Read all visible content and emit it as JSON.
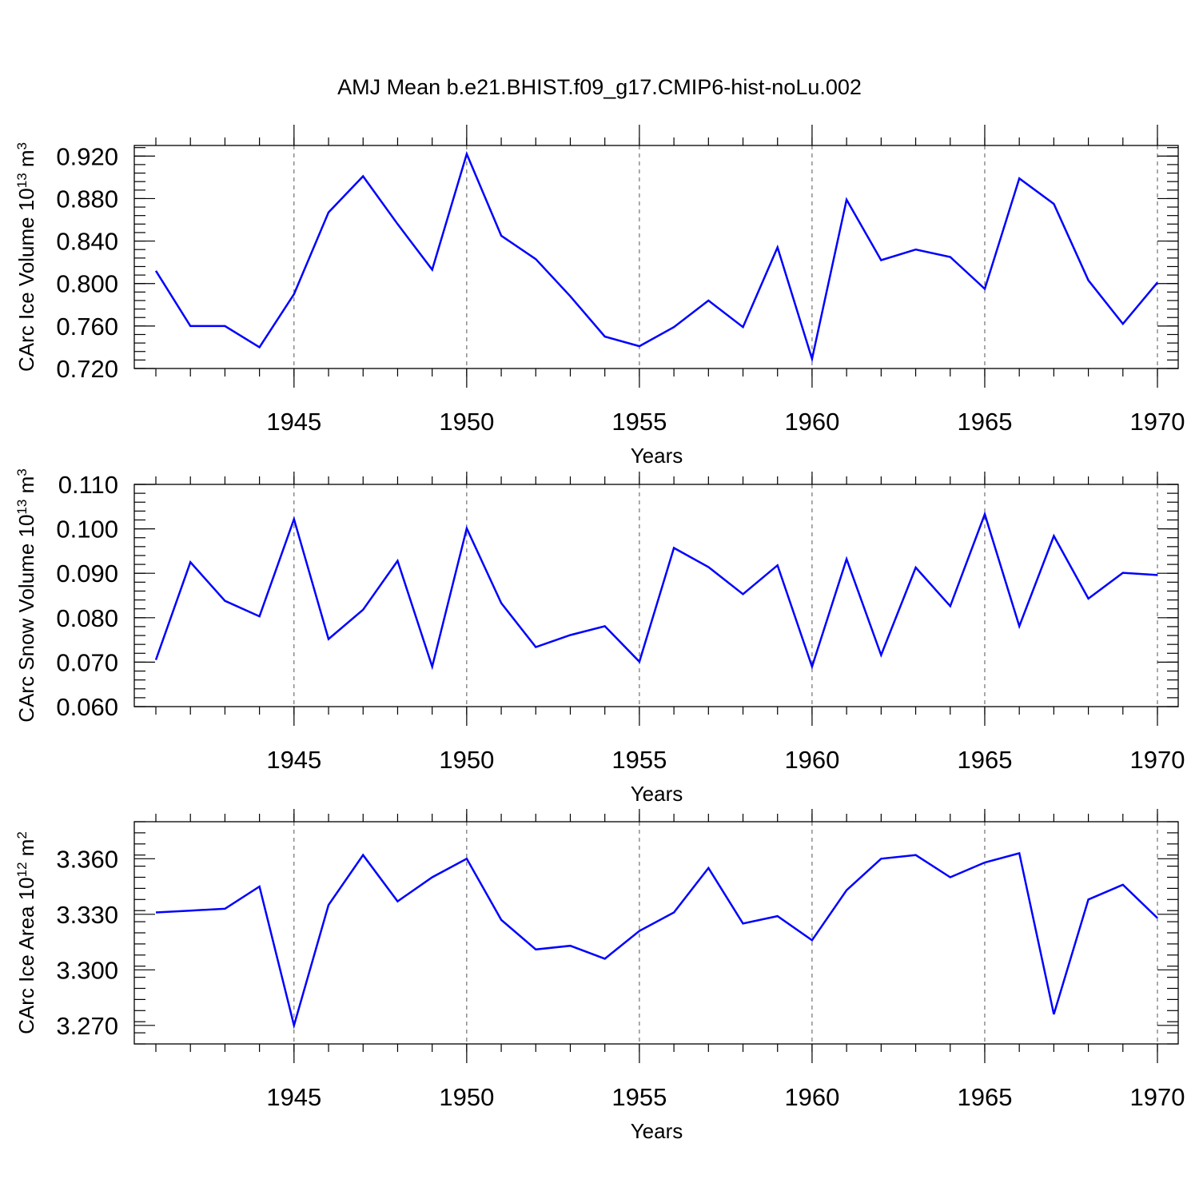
{
  "chart_data": {
    "title": "AMJ Mean b.e21.BHIST.f09_g17.CMIP6-hist-noLu.002",
    "line_color": "#0000ff",
    "x": [
      1941,
      1942,
      1943,
      1944,
      1945,
      1946,
      1947,
      1948,
      1949,
      1950,
      1951,
      1952,
      1953,
      1954,
      1955,
      1956,
      1957,
      1958,
      1959,
      1960,
      1961,
      1962,
      1963,
      1964,
      1965,
      1966,
      1967,
      1968,
      1969,
      1970
    ],
    "xlim": [
      1941,
      1970
    ],
    "xticks": [
      "1945",
      "1950",
      "1955",
      "1960",
      "1965",
      "1970"
    ],
    "xlabel": "Years",
    "panels": [
      {
        "type": "line",
        "name": "CArc Ice Volume",
        "ylabel_main": "CArc Ice Volume 10",
        "ylabel_exp": "13",
        "ylabel_unit": " m",
        "ylabel_unit_exp": "3",
        "ylim": [
          0.72,
          0.93
        ],
        "yticks": [
          "0.720",
          "0.760",
          "0.800",
          "0.840",
          "0.880",
          "0.920"
        ],
        "values": [
          0.812,
          0.76,
          0.76,
          0.74,
          0.79,
          0.867,
          0.901,
          0.856,
          0.813,
          0.922,
          0.845,
          0.823,
          0.788,
          0.75,
          0.741,
          0.759,
          0.784,
          0.759,
          0.834,
          0.729,
          0.879,
          0.822,
          0.832,
          0.825,
          0.795,
          0.899,
          0.875,
          0.803,
          0.762,
          0.801
        ]
      },
      {
        "type": "line",
        "name": "CArc Snow Volume",
        "ylabel_main": "CArc Snow Volume 10",
        "ylabel_exp": "13",
        "ylabel_unit": " m",
        "ylabel_unit_exp": "3",
        "ylim": [
          0.06,
          0.11
        ],
        "yticks": [
          "0.060",
          "0.070",
          "0.080",
          "0.090",
          "0.100",
          "0.110"
        ],
        "values": [
          0.0705,
          0.0925,
          0.0838,
          0.0803,
          0.1022,
          0.0752,
          0.0818,
          0.0928,
          0.069,
          0.1001,
          0.0833,
          0.0734,
          0.0761,
          0.0781,
          0.0701,
          0.0957,
          0.0914,
          0.0853,
          0.0918,
          0.069,
          0.0932,
          0.0716,
          0.0913,
          0.0826,
          0.1033,
          0.0781,
          0.0984,
          0.0843,
          0.0901,
          0.0896
        ]
      },
      {
        "type": "line",
        "name": "CArc Ice Area",
        "ylabel_main": "CArc Ice Area 10",
        "ylabel_exp": "12",
        "ylabel_unit": " m",
        "ylabel_unit_exp": "2",
        "ylim": [
          3.26,
          3.38
        ],
        "yticks": [
          "3.270",
          "3.300",
          "3.330",
          "3.360"
        ],
        "values": [
          3.331,
          3.332,
          3.333,
          3.345,
          3.27,
          3.335,
          3.362,
          3.337,
          3.35,
          3.36,
          3.327,
          3.311,
          3.313,
          3.306,
          3.321,
          3.331,
          3.355,
          3.325,
          3.329,
          3.316,
          3.343,
          3.36,
          3.362,
          3.35,
          3.358,
          3.363,
          3.276,
          3.338,
          3.346,
          3.328
        ]
      }
    ]
  }
}
